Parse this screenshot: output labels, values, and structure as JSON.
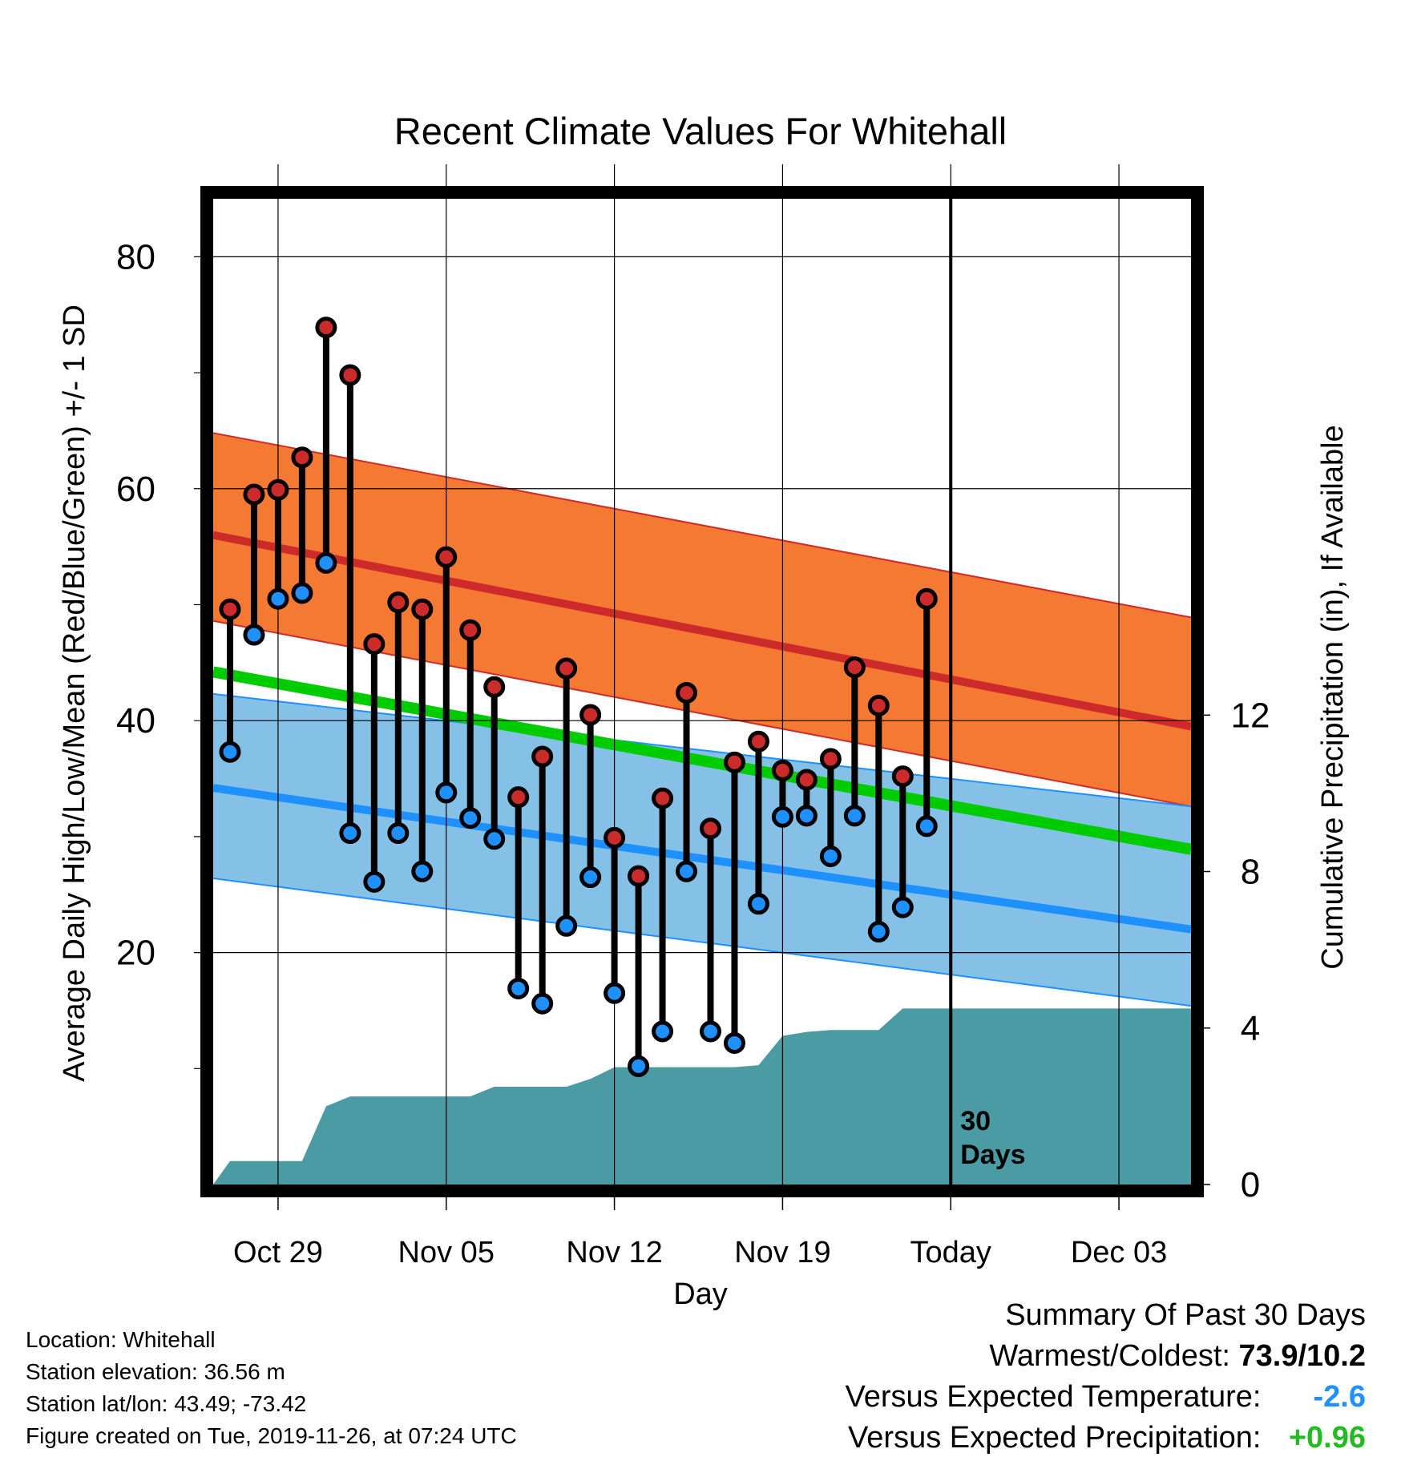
{
  "chart_data": {
    "type": "line",
    "title": "Recent Climate Values For Whitehall",
    "xlabel": "Day",
    "ylabel": "Average Daily High/Low/Mean (Red/Blue/Green) +/- 1 SD",
    "y2label": "Cumulative Precipitation (in), If Available",
    "x_ticks": [
      "Oct 29",
      "Nov 05",
      "Nov 12",
      "Nov 19",
      "Today",
      "Dec 03"
    ],
    "x_tick_days": [
      3,
      10,
      17,
      24,
      31,
      38
    ],
    "x_range_days": [
      0.3,
      41.0
    ],
    "y_ticks": [
      20,
      40,
      60,
      80
    ],
    "y_minor_ticks": [
      10,
      30,
      50,
      70
    ],
    "ylim": [
      0,
      85
    ],
    "y2_ticks": [
      0,
      4,
      8,
      12
    ],
    "y2lim": [
      0,
      25.2
    ],
    "today_day": 31,
    "today_label_line1": "30",
    "today_label_line2": "Days",
    "grid": true,
    "colors": {
      "high_band": "#f47a33",
      "high_line": "#cf2a2a",
      "low_band": "#85c1e6",
      "low_line": "#1e90ff",
      "mean_line": "#00cc00",
      "overlap": "#8b1a1a",
      "precip": "#4a9ba4",
      "high_marker": "#cc2b2b",
      "low_marker": "#1e90ff"
    },
    "normals": {
      "days": [
        0.3,
        41.0
      ],
      "high_mean": [
        56.0,
        39.5
      ],
      "high_upper": [
        64.8,
        48.9
      ],
      "high_lower": [
        48.6,
        32.6
      ],
      "low_mean": [
        34.2,
        22.0
      ],
      "low_upper": [
        42.3,
        32.6
      ],
      "low_lower": [
        26.4,
        15.4
      ],
      "daily_mean": [
        44.2,
        28.9
      ]
    },
    "observed": {
      "days": [
        1,
        2,
        3,
        4,
        5,
        6,
        7,
        8,
        9,
        10,
        11,
        12,
        13,
        14,
        15,
        16,
        17,
        18,
        19,
        20,
        21,
        22,
        23,
        24,
        25,
        26,
        27,
        28,
        29,
        30
      ],
      "high": [
        49.6,
        59.5,
        59.9,
        62.7,
        73.9,
        69.8,
        46.6,
        50.2,
        49.6,
        54.1,
        47.8,
        42.9,
        33.4,
        36.9,
        44.5,
        40.5,
        29.9,
        26.6,
        33.3,
        42.4,
        30.7,
        36.4,
        38.2,
        35.7,
        34.9,
        36.7,
        44.6,
        41.3,
        35.2,
        50.5
      ],
      "low": [
        37.3,
        47.4,
        50.5,
        51.0,
        53.6,
        30.3,
        26.1,
        30.3,
        27.0,
        33.8,
        31.6,
        29.8,
        16.9,
        15.6,
        22.3,
        26.5,
        16.5,
        10.2,
        13.2,
        27.0,
        13.2,
        12.2,
        24.2,
        31.7,
        31.8,
        28.3,
        31.8,
        21.8,
        23.9,
        30.9
      ]
    },
    "precip_cumulative": {
      "days": [
        0.3,
        1,
        2,
        3,
        4,
        5,
        6,
        7,
        8,
        9,
        10,
        11,
        12,
        13,
        14,
        15,
        16,
        17,
        18,
        19,
        20,
        21,
        22,
        23,
        24,
        25,
        26,
        27,
        28,
        29,
        30,
        41
      ],
      "values": [
        0,
        0.6,
        0.6,
        0.6,
        0.6,
        2.0,
        2.25,
        2.25,
        2.25,
        2.25,
        2.25,
        2.25,
        2.5,
        2.5,
        2.5,
        2.5,
        2.7,
        3.0,
        3.0,
        3.0,
        3.0,
        3.0,
        3.0,
        3.05,
        3.8,
        3.9,
        3.95,
        3.95,
        3.95,
        4.5,
        4.5,
        4.5
      ]
    }
  },
  "station_info": {
    "location": "Location: Whitehall",
    "elevation": "Station elevation: 36.56 m",
    "latlon": "Station lat/lon: 43.49; -73.42",
    "created": "Figure created on Tue, 2019-11-26, at 07:24 UTC"
  },
  "summary": {
    "title": "Summary Of Past 30 Days",
    "warmest_coldest_label": "Warmest/Coldest:",
    "warmest_coldest_value": "73.9/10.2",
    "temp_label": "Versus Expected Temperature:",
    "temp_value": "-2.6",
    "temp_color": "#1e90ff",
    "precip_label": "Versus Expected Precipitation:",
    "precip_value": "+0.96",
    "precip_color": "#22bb22"
  }
}
